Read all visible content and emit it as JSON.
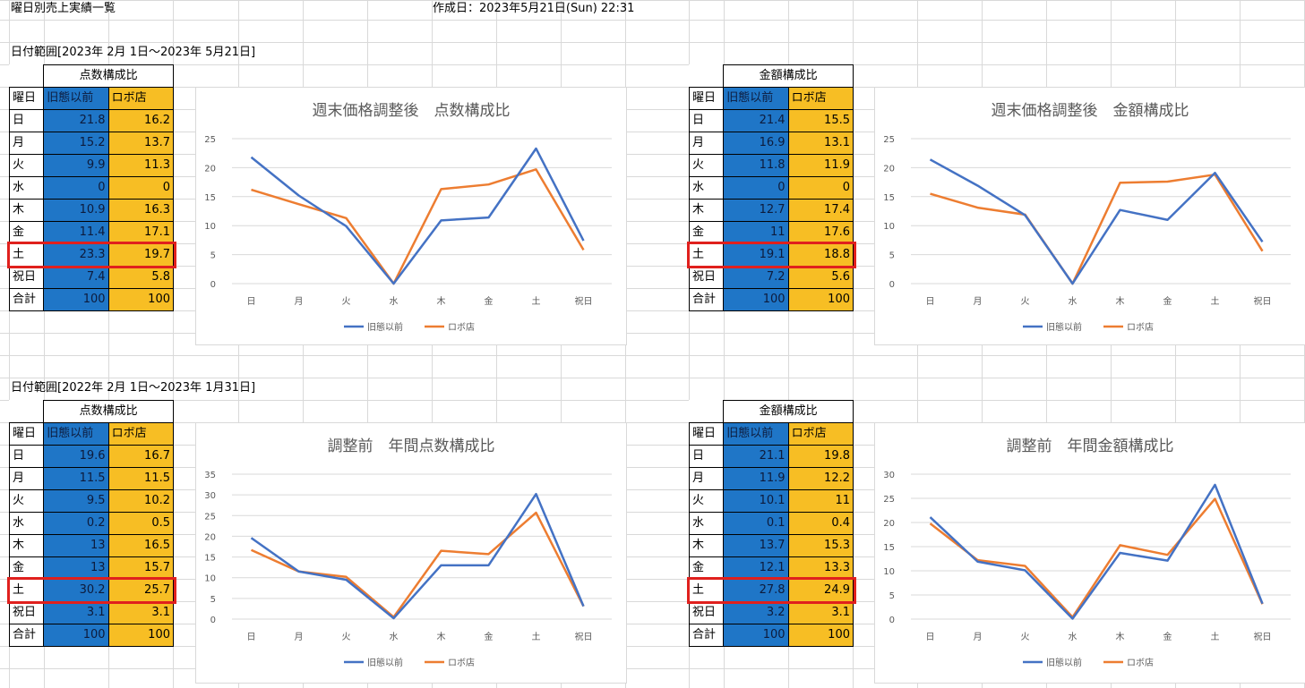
{
  "header": {
    "title": "曜日別売上実績一覧",
    "created": "作成日：2023年5月21日(Sun) 22:31"
  },
  "sections": [
    {
      "range": "日付範囲[2023年 2月 1日～2023年 5月21日]"
    },
    {
      "range": "日付範囲[2022年 2月 1日～2023年 1月31日]"
    }
  ],
  "tables": [
    {
      "caption": "点数構成比",
      "col_day": "曜日",
      "col_a": "旧態以前",
      "col_b": "ロボ店",
      "rows": [
        {
          "day": "日",
          "a": "21.8",
          "b": "16.2"
        },
        {
          "day": "月",
          "a": "15.2",
          "b": "13.7"
        },
        {
          "day": "火",
          "a": "9.9",
          "b": "11.3"
        },
        {
          "day": "水",
          "a": "0",
          "b": "0"
        },
        {
          "day": "木",
          "a": "10.9",
          "b": "16.3"
        },
        {
          "day": "金",
          "a": "11.4",
          "b": "17.1"
        },
        {
          "day": "土",
          "a": "23.3",
          "b": "19.7"
        },
        {
          "day": "祝日",
          "a": "7.4",
          "b": "5.8"
        },
        {
          "day": "合計",
          "a": "100",
          "b": "100"
        }
      ]
    },
    {
      "caption": "金額構成比",
      "col_day": "曜日",
      "col_a": "旧態以前",
      "col_b": "ロボ店",
      "rows": [
        {
          "day": "日",
          "a": "21.4",
          "b": "15.5"
        },
        {
          "day": "月",
          "a": "16.9",
          "b": "13.1"
        },
        {
          "day": "火",
          "a": "11.8",
          "b": "11.9"
        },
        {
          "day": "水",
          "a": "0",
          "b": "0"
        },
        {
          "day": "木",
          "a": "12.7",
          "b": "17.4"
        },
        {
          "day": "金",
          "a": "11",
          "b": "17.6"
        },
        {
          "day": "土",
          "a": "19.1",
          "b": "18.8"
        },
        {
          "day": "祝日",
          "a": "7.2",
          "b": "5.6"
        },
        {
          "day": "合計",
          "a": "100",
          "b": "100"
        }
      ]
    },
    {
      "caption": "点数構成比",
      "col_day": "曜日",
      "col_a": "旧態以前",
      "col_b": "ロボ店",
      "rows": [
        {
          "day": "日",
          "a": "19.6",
          "b": "16.7"
        },
        {
          "day": "月",
          "a": "11.5",
          "b": "11.5"
        },
        {
          "day": "火",
          "a": "9.5",
          "b": "10.2"
        },
        {
          "day": "水",
          "a": "0.2",
          "b": "0.5"
        },
        {
          "day": "木",
          "a": "13",
          "b": "16.5"
        },
        {
          "day": "金",
          "a": "13",
          "b": "15.7"
        },
        {
          "day": "土",
          "a": "30.2",
          "b": "25.7"
        },
        {
          "day": "祝日",
          "a": "3.1",
          "b": "3.1"
        },
        {
          "day": "合計",
          "a": "100",
          "b": "100"
        }
      ]
    },
    {
      "caption": "金額構成比",
      "col_day": "曜日",
      "col_a": "旧態以前",
      "col_b": "ロボ店",
      "rows": [
        {
          "day": "日",
          "a": "21.1",
          "b": "19.8"
        },
        {
          "day": "月",
          "a": "11.9",
          "b": "12.2"
        },
        {
          "day": "火",
          "a": "10.1",
          "b": "11"
        },
        {
          "day": "水",
          "a": "0.1",
          "b": "0.4"
        },
        {
          "day": "木",
          "a": "13.7",
          "b": "15.3"
        },
        {
          "day": "金",
          "a": "12.1",
          "b": "13.3"
        },
        {
          "day": "土",
          "a": "27.8",
          "b": "24.9"
        },
        {
          "day": "祝日",
          "a": "3.2",
          "b": "3.1"
        },
        {
          "day": "合計",
          "a": "100",
          "b": "100"
        }
      ]
    }
  ],
  "colors": {
    "series_a": "#4472c4",
    "series_b": "#ed7d31",
    "cell_blue": "#1f76c7",
    "cell_gold": "#f7be24",
    "highlight": "#e0201d"
  },
  "chart_data": [
    {
      "type": "line",
      "title": "週末価格調整後　点数構成比",
      "categories": [
        "日",
        "月",
        "火",
        "水",
        "木",
        "金",
        "土",
        "祝日"
      ],
      "yticks": [
        "0",
        "5",
        "10",
        "15",
        "20",
        "25"
      ],
      "ylim": [
        0,
        25
      ],
      "grid": true,
      "legend": "bottom",
      "series": [
        {
          "name": "旧態以前",
          "values": [
            21.8,
            15.2,
            9.9,
            0,
            10.9,
            11.4,
            23.3,
            7.4
          ]
        },
        {
          "name": "ロボ店",
          "values": [
            16.2,
            13.7,
            11.3,
            0,
            16.3,
            17.1,
            19.7,
            5.8
          ]
        }
      ]
    },
    {
      "type": "line",
      "title": "週末価格調整後　金額構成比",
      "categories": [
        "日",
        "月",
        "火",
        "水",
        "木",
        "金",
        "土",
        "祝日"
      ],
      "yticks": [
        "0",
        "5",
        "10",
        "15",
        "20",
        "25"
      ],
      "ylim": [
        0,
        25
      ],
      "grid": true,
      "legend": "bottom",
      "series": [
        {
          "name": "旧態以前",
          "values": [
            21.4,
            16.9,
            11.8,
            0,
            12.7,
            11,
            19.1,
            7.2
          ]
        },
        {
          "name": "ロボ店",
          "values": [
            15.5,
            13.1,
            11.9,
            0,
            17.4,
            17.6,
            18.8,
            5.6
          ]
        }
      ]
    },
    {
      "type": "line",
      "title": "調整前　年間点数構成比",
      "categories": [
        "日",
        "月",
        "火",
        "水",
        "木",
        "金",
        "土",
        "祝日"
      ],
      "yticks": [
        "0",
        "5",
        "10",
        "15",
        "20",
        "25",
        "30",
        "35"
      ],
      "ylim": [
        0,
        35
      ],
      "grid": true,
      "legend": "bottom",
      "series": [
        {
          "name": "旧態以前",
          "values": [
            19.6,
            11.5,
            9.5,
            0.2,
            13,
            13,
            30.2,
            3.1
          ]
        },
        {
          "name": "ロボ店",
          "values": [
            16.7,
            11.5,
            10.2,
            0.5,
            16.5,
            15.7,
            25.7,
            3.1
          ]
        }
      ]
    },
    {
      "type": "line",
      "title": "調整前　年間金額構成比",
      "categories": [
        "日",
        "月",
        "火",
        "水",
        "木",
        "金",
        "土",
        "祝日"
      ],
      "yticks": [
        "0",
        "5",
        "10",
        "15",
        "20",
        "25",
        "30"
      ],
      "ylim": [
        0,
        30
      ],
      "grid": true,
      "legend": "bottom",
      "series": [
        {
          "name": "旧態以前",
          "values": [
            21.1,
            11.9,
            10.1,
            0.1,
            13.7,
            12.1,
            27.8,
            3.2
          ]
        },
        {
          "name": "ロボ店",
          "values": [
            19.8,
            12.2,
            11,
            0.4,
            15.3,
            13.3,
            24.9,
            3.1
          ]
        }
      ]
    }
  ]
}
